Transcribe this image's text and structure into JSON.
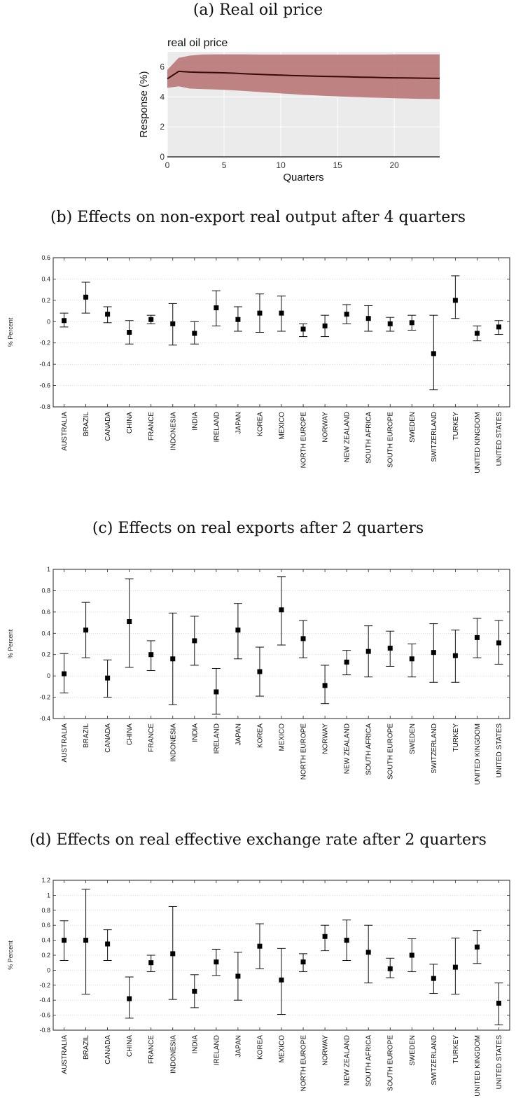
{
  "captions": {
    "a": "(a) Real oil price",
    "b": "(b) Effects on non-export real output after 4 quarters",
    "c": "(c) Effects on real exports after 2 quarters",
    "d": "(d) Effects on real effective exchange rate after 2 quarters"
  },
  "chart_data": [
    {
      "id": "oil",
      "type": "area",
      "title": "real oil price",
      "xlabel": "Quarters",
      "ylabel": "Response (%)",
      "xlim": [
        0,
        24
      ],
      "ylim": [
        0,
        7
      ],
      "xticks": [
        0,
        5,
        10,
        15,
        20
      ],
      "yticks": [
        0,
        2,
        4,
        6
      ],
      "grid": true,
      "colors": {
        "band": "#b87373",
        "line": "#3a0a0a",
        "background": "#ebebeb"
      },
      "x": [
        0,
        1,
        2,
        3,
        4,
        5,
        6,
        7,
        8,
        9,
        10,
        11,
        12,
        13,
        14,
        15,
        16,
        17,
        18,
        19,
        20,
        21,
        22,
        23,
        24
      ],
      "median": [
        5.2,
        5.7,
        5.65,
        5.63,
        5.62,
        5.6,
        5.57,
        5.53,
        5.5,
        5.47,
        5.45,
        5.42,
        5.4,
        5.38,
        5.36,
        5.35,
        5.33,
        5.31,
        5.3,
        5.28,
        5.27,
        5.26,
        5.25,
        5.24,
        5.23
      ],
      "upper": [
        5.8,
        6.6,
        6.75,
        6.82,
        6.83,
        6.83,
        6.83,
        6.83,
        6.82,
        6.82,
        6.82,
        6.82,
        6.82,
        6.82,
        6.82,
        6.82,
        6.82,
        6.82,
        6.82,
        6.82,
        6.83,
        6.83,
        6.83,
        6.83,
        6.83
      ],
      "lower": [
        4.6,
        4.7,
        4.55,
        4.52,
        4.5,
        4.47,
        4.43,
        4.38,
        4.33,
        4.28,
        4.23,
        4.18,
        4.13,
        4.1,
        4.06,
        4.03,
        4.0,
        3.98,
        3.95,
        3.93,
        3.91,
        3.89,
        3.87,
        3.86,
        3.85
      ]
    },
    {
      "id": "b",
      "type": "scatter",
      "ylabel": "% Percent",
      "ylim": [
        -0.8,
        0.6
      ],
      "yticks": [
        -0.8,
        -0.6,
        -0.4,
        -0.2,
        0,
        0.2,
        0.4,
        0.6
      ],
      "categories": [
        "AUSTRALIA",
        "BRAZIL",
        "CANADA",
        "CHINA",
        "FRANCE",
        "INDONESIA",
        "INDIA",
        "IRELAND",
        "JAPAN",
        "KOREA",
        "MEXICO",
        "NORTH EUROPE",
        "NORWAY",
        "NEW ZEALAND",
        "SOUTH AFRICA",
        "SOUTH EUROPE",
        "SWEDEN",
        "SWITZERLAND",
        "TURKEY",
        "UNITED KINGDOM",
        "UNITED STATES"
      ],
      "values": [
        0.01,
        0.23,
        0.07,
        -0.1,
        0.02,
        -0.02,
        -0.11,
        0.13,
        0.02,
        0.08,
        0.08,
        -0.07,
        -0.04,
        0.07,
        0.03,
        -0.02,
        -0.01,
        -0.3,
        0.2,
        -0.11,
        -0.05
      ],
      "upper": [
        0.08,
        0.37,
        0.14,
        0.01,
        0.06,
        0.17,
        0.0,
        0.29,
        0.14,
        0.26,
        0.24,
        -0.02,
        0.06,
        0.16,
        0.15,
        0.04,
        0.06,
        0.06,
        0.43,
        -0.04,
        0.01
      ],
      "lower": [
        -0.05,
        0.08,
        -0.01,
        -0.21,
        -0.02,
        -0.22,
        -0.21,
        -0.04,
        -0.09,
        -0.1,
        -0.09,
        -0.14,
        -0.14,
        -0.02,
        -0.09,
        -0.09,
        -0.08,
        -0.64,
        0.03,
        -0.18,
        -0.12
      ]
    },
    {
      "id": "c",
      "type": "scatter",
      "ylabel": "% Percent",
      "ylim": [
        -0.4,
        1
      ],
      "yticks": [
        -0.4,
        -0.2,
        0,
        0.2,
        0.4,
        0.6,
        0.8,
        1
      ],
      "categories": [
        "AUSTRALIA",
        "BRAZIL",
        "CANADA",
        "CHINA",
        "FRANCE",
        "INDONESIA",
        "INDIA",
        "IRELAND",
        "JAPAN",
        "KOREA",
        "MEXICO",
        "NORTH EUROPE",
        "NORWAY",
        "NEW ZEALAND",
        "SOUTH AFRICA",
        "SOUTH EUROPE",
        "SWEDEN",
        "SWITZERLAND",
        "TURKEY",
        "UNITED KINGDOM",
        "UNITED STATES"
      ],
      "values": [
        0.02,
        0.43,
        -0.02,
        0.51,
        0.2,
        0.16,
        0.33,
        -0.15,
        0.43,
        0.04,
        0.62,
        0.35,
        -0.09,
        0.13,
        0.23,
        0.26,
        0.16,
        0.22,
        0.19,
        0.36,
        0.31
      ],
      "upper": [
        0.21,
        0.69,
        0.15,
        0.91,
        0.33,
        0.59,
        0.56,
        0.07,
        0.68,
        0.27,
        0.93,
        0.52,
        0.1,
        0.24,
        0.47,
        0.42,
        0.3,
        0.49,
        0.43,
        0.54,
        0.52
      ],
      "lower": [
        -0.16,
        0.17,
        -0.2,
        0.08,
        0.05,
        -0.27,
        0.1,
        -0.36,
        0.16,
        -0.19,
        0.29,
        0.17,
        -0.26,
        0.01,
        -0.01,
        0.09,
        -0.01,
        -0.06,
        -0.06,
        0.17,
        0.11
      ]
    },
    {
      "id": "d",
      "type": "scatter",
      "ylabel": "% Percent",
      "ylim": [
        -0.8,
        1.2
      ],
      "yticks": [
        -0.8,
        -0.6,
        -0.4,
        -0.2,
        0,
        0.2,
        0.4,
        0.6,
        0.8,
        1,
        1.2
      ],
      "categories": [
        "AUSTRALIA",
        "BRAZIL",
        "CANADA",
        "CHINA",
        "FRANCE",
        "INDONESIA",
        "INDIA",
        "IRELAND",
        "JAPAN",
        "KOREA",
        "MEXICO",
        "NORTH EUROPE",
        "NORWAY",
        "NEW ZEALAND",
        "SOUTH AFRICA",
        "SOUTH EUROPE",
        "SWEDEN",
        "SWITZERLAND",
        "TURKEY",
        "UNITED KINGDOM",
        "UNITED STATES"
      ],
      "values": [
        0.4,
        0.4,
        0.35,
        -0.38,
        0.1,
        0.22,
        -0.28,
        0.11,
        -0.08,
        0.32,
        -0.13,
        0.11,
        0.45,
        0.4,
        0.24,
        0.02,
        0.2,
        -0.11,
        0.04,
        0.31,
        -0.44
      ],
      "upper": [
        0.66,
        1.08,
        0.54,
        -0.09,
        0.2,
        0.85,
        -0.06,
        0.28,
        0.24,
        0.62,
        0.29,
        0.22,
        0.6,
        0.67,
        0.6,
        0.16,
        0.42,
        0.08,
        0.43,
        0.53,
        -0.17
      ],
      "lower": [
        0.13,
        -0.32,
        0.13,
        -0.64,
        -0.02,
        -0.39,
        -0.5,
        -0.07,
        -0.4,
        0.02,
        -0.59,
        -0.02,
        0.26,
        0.13,
        -0.17,
        -0.1,
        -0.02,
        -0.31,
        -0.32,
        0.09,
        -0.73
      ]
    }
  ]
}
